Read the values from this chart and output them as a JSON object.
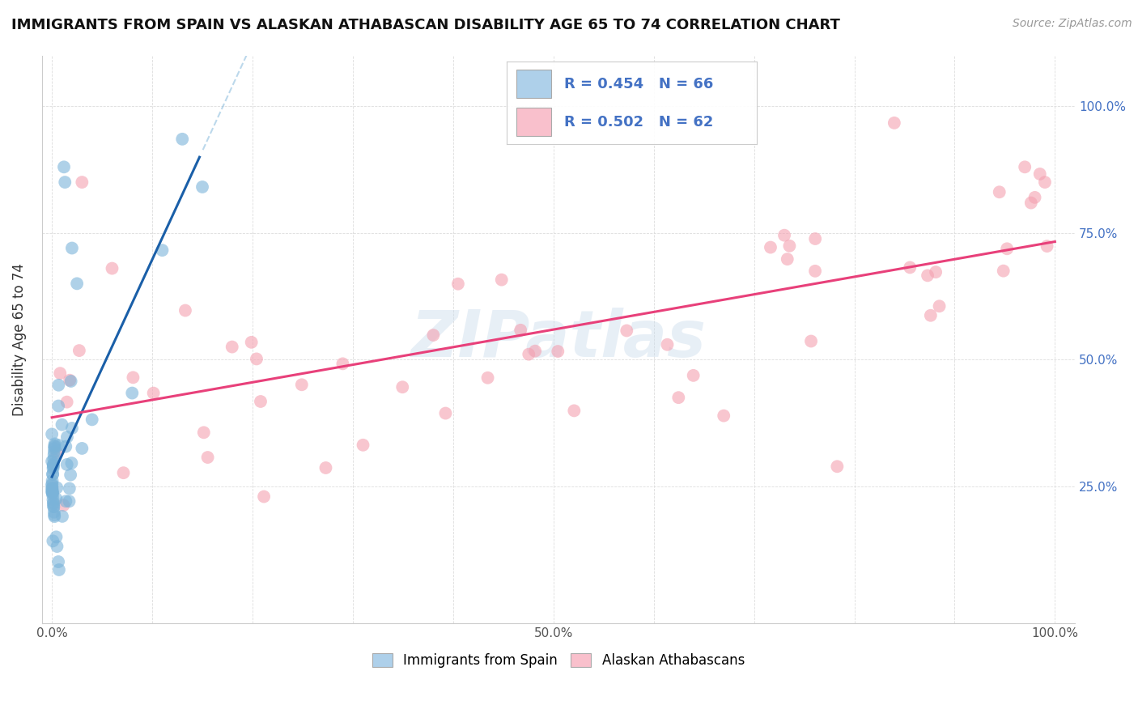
{
  "title": "IMMIGRANTS FROM SPAIN VS ALASKAN ATHABASCAN DISABILITY AGE 65 TO 74 CORRELATION CHART",
  "source": "Source: ZipAtlas.com",
  "ylabel": "Disability Age 65 to 74",
  "r_blue": 0.454,
  "n_blue": 66,
  "r_pink": 0.502,
  "n_pink": 62,
  "blue_color": "#7ab3d9",
  "pink_color": "#f4a0b0",
  "blue_line_color": "#1a5fa8",
  "pink_line_color": "#e8407a",
  "blue_fill_color": "#aed0ea",
  "pink_fill_color": "#f9c0cc",
  "watermark": "ZIPatlas",
  "watermark_color": "#c5d8ea",
  "right_tick_color": "#4472c4",
  "legend_bottom_labels": [
    "Immigrants from Spain",
    "Alaskan Athabascans"
  ]
}
